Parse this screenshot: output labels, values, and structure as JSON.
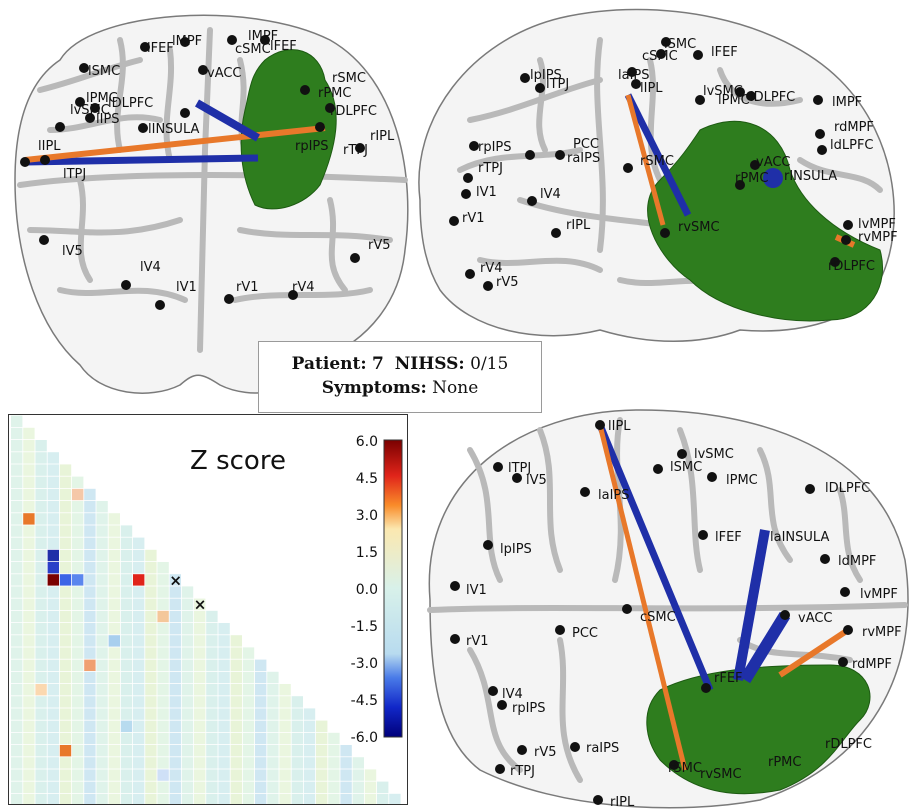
{
  "info_box": {
    "patient_label": "Patient:",
    "patient_value": "7",
    "nihss_label": "NIHSS:",
    "nihss_value": "0/15",
    "symptoms_label": "Symptoms:",
    "symptoms_value": "None"
  },
  "colorbar": {
    "title": "Z score",
    "ticks": [
      "6.0",
      "4.5",
      "3.0",
      "1.5",
      "0.0",
      "-1.5",
      "-3.0",
      "-4.5",
      "-6.0"
    ]
  },
  "colors": {
    "lesion": "#2e7d1e",
    "positive_connection": "#e8782a",
    "negative_connection": "#1f2fa8",
    "node": "#111111",
    "sulci": "#b9b9b9"
  },
  "posterior_view": {
    "labels": [
      "lFEF",
      "lMPF",
      "cSMC",
      "lMPF",
      "lFEF",
      "lSMC",
      "vACC",
      "lPMC",
      "lDLPFC",
      "rSMC",
      "rPMC",
      "rDLPFC",
      "lvSMC",
      "lIPS",
      "lINSULA",
      "lIPL",
      "lTPJ",
      "rpIPS",
      "rTPJ",
      "rIPL",
      "lV5",
      "lV4",
      "lV1",
      "rV1",
      "rV4",
      "rV5"
    ]
  },
  "lateral_view": {
    "labels": [
      "lpIPS",
      "lTPJ",
      "laIPS",
      "lIPL",
      "cSMC",
      "lSMC",
      "lFEF",
      "lvSMC",
      "lPMC",
      "lDLPFC",
      "lMPF",
      "rdMPF",
      "ldLPFC",
      "rpIPS",
      "PCC",
      "raIPS",
      "rSMC",
      "rTPJ",
      "lV1",
      "lV4",
      "rV1",
      "rIPL",
      "rvSMC",
      "rPMC",
      "vACC",
      "rINSULA",
      "lvMPF",
      "rvMPF",
      "rDLPFC",
      "rV4",
      "rV5"
    ]
  },
  "dorsal_view": {
    "labels": [
      "lIPL",
      "lTPJ",
      "lV5",
      "lvSMC",
      "lSMC",
      "lPMC",
      "lDLPFC",
      "laIPS",
      "lpIPS",
      "lFEF",
      "laINSULA",
      "ldMPF",
      "lV1",
      "lvMPF",
      "cSMC",
      "vACC",
      "rvMPF",
      "PCC",
      "rV1",
      "rdMPF",
      "rFEF",
      "lV4",
      "rpIPS",
      "raIPS",
      "rV5",
      "rTPJ",
      "rSMC",
      "rvSMC",
      "rPMC",
      "rDLPFC",
      "rIPL"
    ]
  }
}
